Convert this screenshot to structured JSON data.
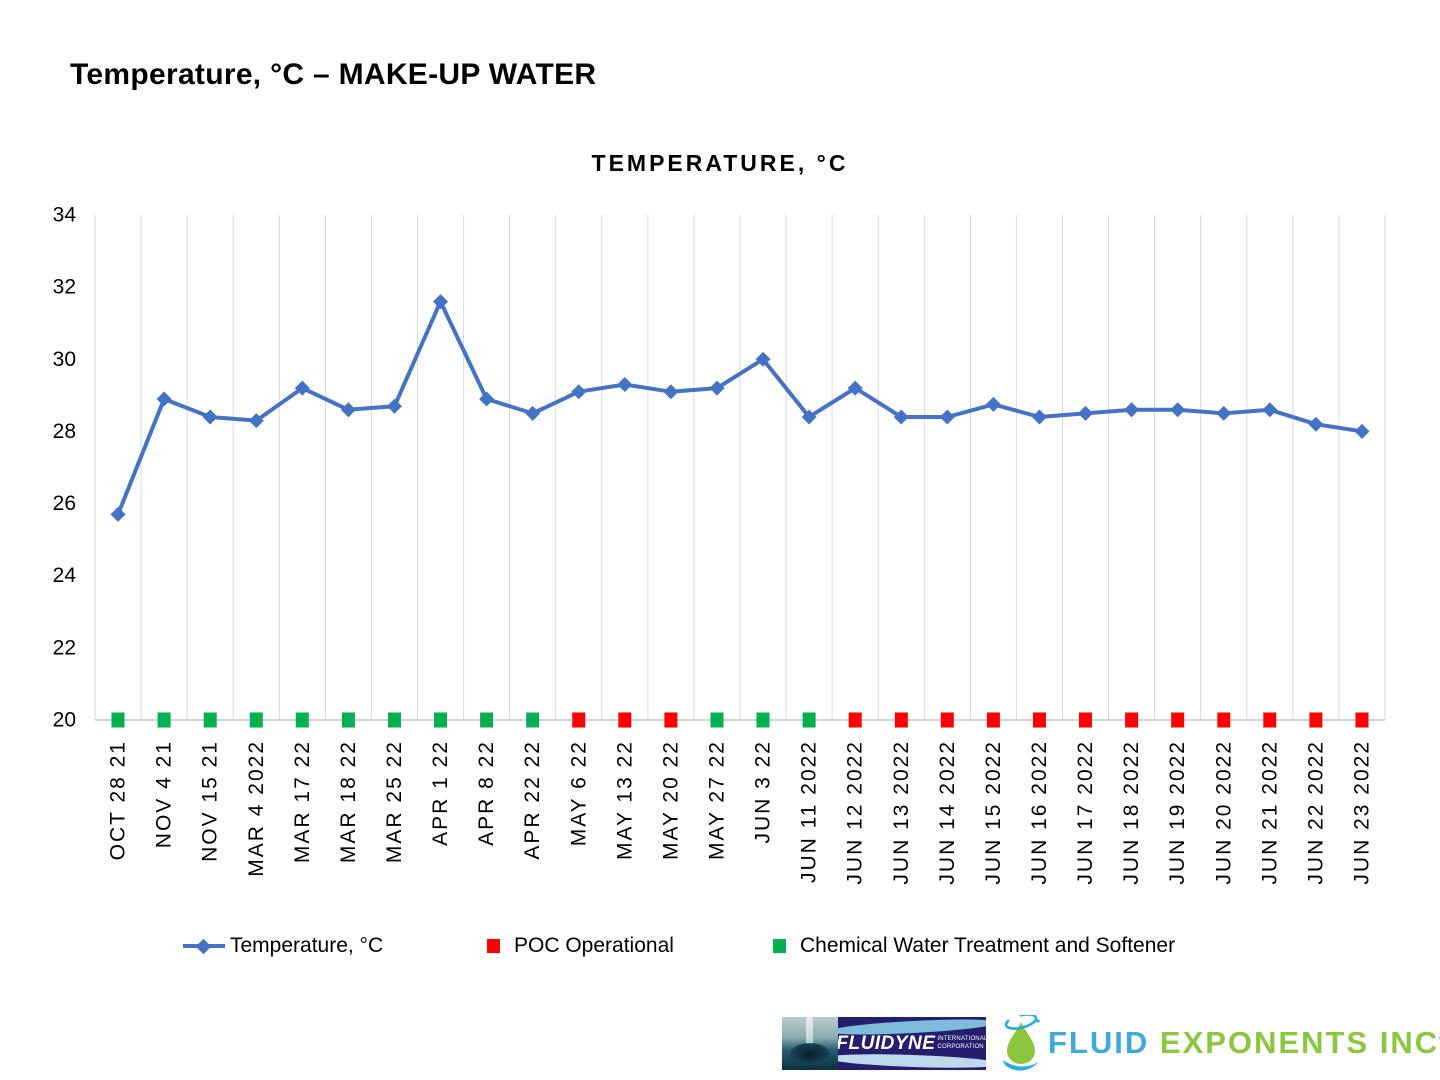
{
  "page_title": "Temperature, °C – MAKE-UP WATER",
  "chart_data": {
    "type": "line",
    "title": "TEMPERATURE, °C",
    "xlabel": "",
    "ylabel": "",
    "ylim": [
      20,
      34
    ],
    "yticks": [
      20,
      22,
      24,
      26,
      28,
      30,
      32,
      34
    ],
    "grid": "vertical-only",
    "legend_position": "bottom",
    "categories": [
      "OCT 28 21",
      "NOV 4 21",
      "NOV 15 21",
      "MAR 4 2022",
      "MAR 17 22",
      "MAR 18 22",
      "MAR 25 22",
      "APR 1 22",
      "APR 8 22",
      "APR 22 22",
      "MAY 6 22",
      "MAY 13 22",
      "MAY 20 22",
      "MAY 27 22",
      "JUN 3 22",
      "JUN 11 2022",
      "JUN 12 2022",
      "JUN 13 2022",
      "JUN 14 2022",
      "JUN 15 2022",
      "JUN 16 2022",
      "JUN 17 2022",
      "JUN 18 2022",
      "JUN 19 2022",
      "JUN 20 2022",
      "JUN 21 2022",
      "JUN 22 2022",
      "JUN 23 2022"
    ],
    "series": [
      {
        "name": "Temperature, °C",
        "type": "line",
        "marker": "diamond",
        "color": "#4472C4",
        "values": [
          25.7,
          28.9,
          28.4,
          28.3,
          29.2,
          28.6,
          28.7,
          31.6,
          28.9,
          28.5,
          29.1,
          29.3,
          29.1,
          29.2,
          30.0,
          28.4,
          29.2,
          28.4,
          28.4,
          28.75,
          28.4,
          28.5,
          28.6,
          28.6,
          28.5,
          28.6,
          28.2,
          28.0
        ]
      },
      {
        "name": "POC Operational",
        "type": "marker",
        "marker": "square",
        "color": "#FF0000",
        "values": [
          null,
          null,
          null,
          null,
          null,
          null,
          null,
          null,
          null,
          null,
          20,
          20,
          20,
          null,
          null,
          null,
          20,
          20,
          20,
          20,
          20,
          20,
          20,
          20,
          20,
          20,
          20,
          20
        ]
      },
      {
        "name": "Chemical Water Treatment and Softener",
        "type": "marker",
        "marker": "square",
        "color": "#00B050",
        "values": [
          20,
          20,
          20,
          20,
          20,
          20,
          20,
          20,
          20,
          20,
          null,
          null,
          null,
          20,
          20,
          20,
          null,
          null,
          null,
          null,
          null,
          null,
          null,
          null,
          null,
          null,
          null,
          null
        ]
      }
    ]
  },
  "colors": {
    "gridline": "#D9D9D9",
    "axis_line": "#C6C6C6",
    "text": "#000000"
  },
  "footer": {
    "fluidyne": {
      "name": "FLUIDYNE",
      "sub_line1": "INTERNATIONAL",
      "sub_line2": "CORPORATION"
    },
    "fluid_exponents": {
      "word1": "FLUID",
      "word2": "EXPONENTS INC",
      "mark": "®",
      "word1_color": "#3FA9DC",
      "word2_color": "#8CC63F"
    }
  }
}
